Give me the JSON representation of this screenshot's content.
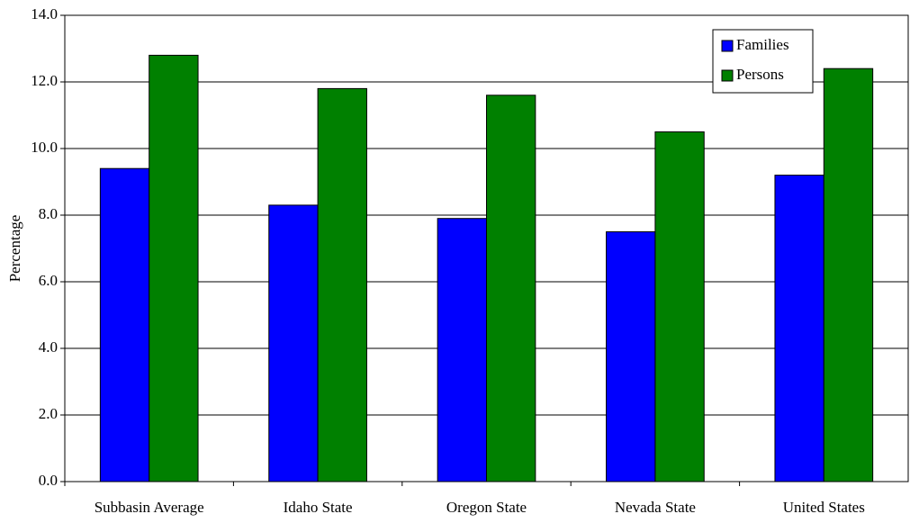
{
  "chart_data": {
    "type": "bar",
    "y_label": "Percentage",
    "categories": [
      "Subbasin Average",
      "Idaho State",
      "Oregon State",
      "Nevada State",
      "United States"
    ],
    "series": [
      {
        "name": "Families",
        "color": "#0000ff",
        "values": [
          9.4,
          8.3,
          7.9,
          7.5,
          9.2
        ]
      },
      {
        "name": "Persons",
        "color": "#008000",
        "values": [
          12.8,
          11.8,
          11.6,
          10.5,
          12.4
        ]
      }
    ],
    "ylim": [
      0,
      14
    ],
    "yticks": [
      {
        "value": 0,
        "label": "0.0"
      },
      {
        "value": 2,
        "label": "2.0"
      },
      {
        "value": 4,
        "label": "4.0"
      },
      {
        "value": 6,
        "label": "6.0"
      },
      {
        "value": 8,
        "label": "8.0"
      },
      {
        "value": 10,
        "label": "10.0"
      },
      {
        "value": 12,
        "label": "12.0"
      },
      {
        "value": 14,
        "label": "14.0"
      }
    ],
    "grid": true,
    "legend": "upper right"
  }
}
